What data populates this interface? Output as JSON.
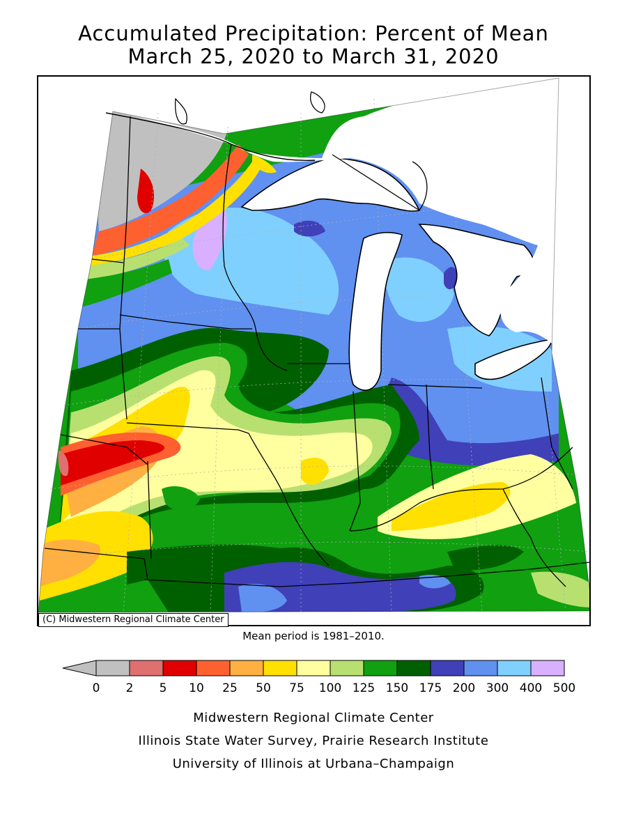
{
  "title_line1": "Accumulated Precipitation: Percent of Mean",
  "title_line2": "March 25, 2020 to March 31, 2020",
  "copyright": "(C) Midwestern Regional Climate Center",
  "mean_period": "Mean period is 1981–2010.",
  "legend": {
    "ticks": [
      "0",
      "2",
      "5",
      "10",
      "25",
      "50",
      "75",
      "100",
      "125",
      "150",
      "175",
      "200",
      "300",
      "400",
      "500"
    ],
    "below_color": "#c0c0c0",
    "colors": [
      "#c0c0c0",
      "#e07070",
      "#e00000",
      "#ff6030",
      "#ffb040",
      "#ffe000",
      "#ffffa0",
      "#b8e070",
      "#10a010",
      "#006000",
      "#4040b8",
      "#6090f0",
      "#80d0ff",
      "#d8b0ff"
    ]
  },
  "footer": {
    "line1": "Midwestern Regional Climate Center",
    "line2": "Illinois State Water Survey, Prairie Research Institute",
    "line3": "University of Illinois at Urbana–Champaign"
  }
}
